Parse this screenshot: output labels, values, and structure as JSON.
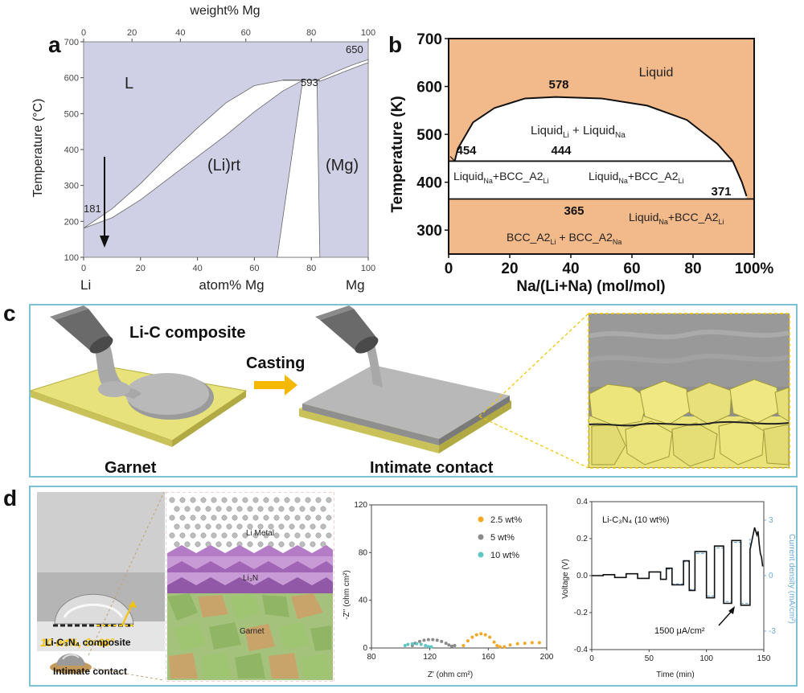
{
  "panels": {
    "a": "a",
    "b": "b",
    "c": "c",
    "d": "d"
  },
  "colors": {
    "panel_a_fill": "#cfd0e6",
    "panel_b_fill": "#f2b98a",
    "box_border": "#7cc3d6",
    "garnet_yellow": "#e6e27a",
    "orange_series": "#f5a623",
    "gray_series": "#8a8a8a",
    "teal_series": "#5ec7c3",
    "arrow_orange": "#f5b800"
  },
  "chart_data": [
    {
      "id": "a",
      "type": "area",
      "title": "",
      "top_axis_label": "weight% Mg",
      "top_ticks": [
        "0",
        "20",
        "40",
        "60",
        "80",
        "100"
      ],
      "ylabel": "Temperature (°C)",
      "y_ticks": [
        "100",
        "200",
        "300",
        "400",
        "500",
        "600",
        "700"
      ],
      "ylim": [
        100,
        700
      ],
      "x_ticks": [
        "0",
        "20",
        "40",
        "60",
        "80",
        "100"
      ],
      "xlim": [
        0,
        100
      ],
      "x_left_label": "Li",
      "x_center_label": "atom% Mg",
      "x_right_label": "Mg",
      "region_labels": {
        "liquid": "L",
        "li_rt": "(Li)rt",
        "mg": "(Mg)"
      },
      "points": {
        "li_melting": "181",
        "eutectic": "593",
        "mg_melting": "650"
      },
      "liquidus_solidus_li": {
        "liquidus": [
          [
            0,
            181
          ],
          [
            10,
            235
          ],
          [
            20,
            305
          ],
          [
            30,
            385
          ],
          [
            40,
            460
          ],
          [
            50,
            530
          ],
          [
            60,
            578
          ],
          [
            70,
            593
          ]
        ],
        "solidus": [
          [
            0,
            181
          ],
          [
            10,
            210
          ],
          [
            20,
            260
          ],
          [
            30,
            320
          ],
          [
            40,
            380
          ],
          [
            50,
            440
          ],
          [
            60,
            505
          ],
          [
            70,
            563
          ],
          [
            77,
            593
          ]
        ]
      },
      "two_phase_gap": [
        [
          68,
          100
        ],
        [
          77,
          593
        ],
        [
          82,
          593
        ],
        [
          83,
          100
        ]
      ]
    },
    {
      "id": "b",
      "type": "area",
      "title": "",
      "ylabel": "Temperature (K)",
      "xlabel": "Na/(Li+Na) (mol/mol)",
      "y_ticks": [
        "300",
        "400",
        "500",
        "600",
        "700"
      ],
      "ylim": [
        250,
        700
      ],
      "x_ticks": [
        "0",
        "20",
        "40",
        "60",
        "80",
        "100%"
      ],
      "xlim": [
        0,
        100
      ],
      "region_labels": {
        "liquid": "Liquid",
        "miscibility": [
          "Liquid",
          "Li",
          " + Liquid",
          "Na"
        ],
        "left_band": [
          "Liquid",
          "Na",
          "+BCC_A2",
          "Li"
        ],
        "mid_band": [
          "Liquid",
          "Na",
          "+BCC_A2",
          "Li"
        ],
        "right_band": [
          "Liquid",
          "Na",
          "+BCC_A2",
          "Li"
        ],
        "bottom": [
          "BCC_A2",
          "Li",
          " + BCC_A2",
          "Na"
        ]
      },
      "temperatures": {
        "t578": "578",
        "t454": "454",
        "t444": "444",
        "t371": "371",
        "t365": "365"
      },
      "miscibility_dome": [
        [
          2,
          444
        ],
        [
          3,
          470
        ],
        [
          8,
          525
        ],
        [
          15,
          555
        ],
        [
          25,
          575
        ],
        [
          35,
          578
        ],
        [
          50,
          575
        ],
        [
          65,
          560
        ],
        [
          78,
          530
        ],
        [
          88,
          480
        ],
        [
          93,
          444
        ],
        [
          96,
          400
        ],
        [
          97.5,
          371
        ]
      ],
      "monotectic_T": 444,
      "eutectic_T": 365
    },
    {
      "id": "d_eis",
      "type": "scatter",
      "title": "",
      "xlabel": "Z' (ohm cm²)",
      "ylabel": "-Z'' (ohm cm²)",
      "x_ticks": [
        "80",
        "120",
        "160",
        "200"
      ],
      "xlim": [
        80,
        200
      ],
      "y_ticks": [
        "0",
        "40",
        "80",
        "120"
      ],
      "ylim": [
        0,
        120
      ],
      "legend_position": "top-right",
      "series": [
        {
          "name": "2.5 wt%",
          "color": "#f5a623",
          "points": [
            [
              143,
              2
            ],
            [
              146,
              6
            ],
            [
              149,
              9
            ],
            [
              152,
              11
            ],
            [
              155,
              12
            ],
            [
              158,
              11
            ],
            [
              161,
              9
            ],
            [
              164,
              5
            ],
            [
              166,
              2
            ],
            [
              168,
              1
            ],
            [
              171,
              1
            ],
            [
              175,
              2.5
            ],
            [
              180,
              3.5
            ],
            [
              185,
              4
            ],
            [
              190,
              4.5
            ],
            [
              195,
              4.5
            ]
          ]
        },
        {
          "name": "5 wt%",
          "color": "#8a8a8a",
          "points": [
            [
              108,
              2
            ],
            [
              110,
              4
            ],
            [
              113,
              5.5
            ],
            [
              116,
              6.5
            ],
            [
              119,
              7
            ],
            [
              122,
              7
            ],
            [
              125,
              6.5
            ],
            [
              128,
              5.5
            ],
            [
              131,
              4
            ],
            [
              133,
              2.5
            ],
            [
              135,
              1.5
            ],
            [
              137,
              2
            ]
          ]
        },
        {
          "name": "10 wt%",
          "color": "#5ec7c3",
          "points": [
            [
              103,
              2
            ],
            [
              105,
              3
            ],
            [
              108,
              3.5
            ],
            [
              111,
              3.5
            ],
            [
              114,
              3
            ],
            [
              117,
              2
            ],
            [
              119,
              1.2
            ],
            [
              121,
              1
            ]
          ]
        }
      ]
    },
    {
      "id": "d_cycling",
      "type": "line",
      "title": "",
      "annotation": "Li-C₃N₄ (10 wt%)",
      "current_label": "1500 μA/cm²",
      "xlabel": "Time (min)",
      "ylabel": "Voltage (V)",
      "y2label": "Current density (mA/cm²)",
      "x_ticks": [
        "0",
        "50",
        "100",
        "150"
      ],
      "xlim": [
        0,
        150
      ],
      "y_ticks": [
        "-0.4",
        "-0.2",
        "0.0",
        "0.2",
        "0.4"
      ],
      "ylim": [
        -0.4,
        0.4
      ],
      "y2_ticks": [
        "-3",
        "0",
        "3"
      ],
      "series": [
        {
          "name": "voltage",
          "color": "#111111",
          "points": [
            [
              0,
              0
            ],
            [
              10,
              0
            ],
            [
              10,
              0.005
            ],
            [
              20,
              0.005
            ],
            [
              20,
              -0.01
            ],
            [
              30,
              -0.01
            ],
            [
              30,
              0.01
            ],
            [
              40,
              0.01
            ],
            [
              40,
              -0.015
            ],
            [
              50,
              -0.015
            ],
            [
              50,
              0.02
            ],
            [
              60,
              0.02
            ],
            [
              60,
              -0.02
            ],
            [
              65,
              -0.02
            ],
            [
              65,
              0.04
            ],
            [
              70,
              0.04
            ],
            [
              70,
              -0.05
            ],
            [
              80,
              -0.05
            ],
            [
              80,
              0.08
            ],
            [
              85,
              0.08
            ],
            [
              85,
              -0.08
            ],
            [
              90,
              -0.08
            ],
            [
              90,
              0.13
            ],
            [
              100,
              0.13
            ],
            [
              100,
              -0.12
            ],
            [
              107,
              -0.12
            ],
            [
              107,
              0.16
            ],
            [
              115,
              0.16
            ],
            [
              115,
              -0.15
            ],
            [
              122,
              -0.15
            ],
            [
              122,
              0.19
            ],
            [
              130,
              0.19
            ],
            [
              130,
              -0.16
            ],
            [
              138,
              -0.16
            ],
            [
              138,
              0.14
            ],
            [
              140,
              0.2
            ],
            [
              142,
              0.26
            ],
            [
              144,
              0.22
            ],
            [
              145,
              0.24
            ],
            [
              146,
              0.17
            ],
            [
              147,
              0.12
            ],
            [
              148,
              0.1
            ],
            [
              149,
              0.05
            ]
          ]
        },
        {
          "name": "current",
          "color": "#6aa9d8",
          "points": [
            [
              0,
              0
            ],
            [
              10,
              0
            ],
            [
              10,
              0.005
            ],
            [
              20,
              0.005
            ],
            [
              20,
              -0.01
            ],
            [
              30,
              -0.01
            ],
            [
              30,
              0.01
            ],
            [
              40,
              0.01
            ],
            [
              40,
              -0.015
            ],
            [
              50,
              -0.015
            ],
            [
              50,
              0.02
            ],
            [
              60,
              0.02
            ],
            [
              60,
              -0.02
            ],
            [
              65,
              -0.02
            ],
            [
              65,
              0.035
            ],
            [
              70,
              0.035
            ],
            [
              70,
              -0.045
            ],
            [
              80,
              -0.045
            ],
            [
              80,
              0.075
            ],
            [
              85,
              0.075
            ],
            [
              85,
              -0.075
            ],
            [
              90,
              -0.075
            ],
            [
              90,
              0.12
            ],
            [
              100,
              0.12
            ],
            [
              100,
              -0.11
            ],
            [
              107,
              -0.11
            ],
            [
              107,
              0.15
            ],
            [
              115,
              0.15
            ],
            [
              115,
              -0.14
            ],
            [
              122,
              -0.14
            ],
            [
              122,
              0.18
            ],
            [
              130,
              0.18
            ],
            [
              130,
              -0.15
            ],
            [
              138,
              -0.15
            ],
            [
              138,
              0.2
            ]
          ]
        }
      ]
    }
  ],
  "panel_c": {
    "composite_label": "Li-C composite",
    "casting_label": "Casting",
    "garnet_label": "Garnet",
    "contact_label": "Intimate contact"
  },
  "panel_d": {
    "wetting_caption": "10 wt%, θ=60°",
    "composite_label": "Li-C₃N₄ composite",
    "contact_label": "Intimate contact",
    "layers": {
      "metal": "Li Metal",
      "nitride": "Li₃N",
      "garnet": "Garnet"
    }
  }
}
